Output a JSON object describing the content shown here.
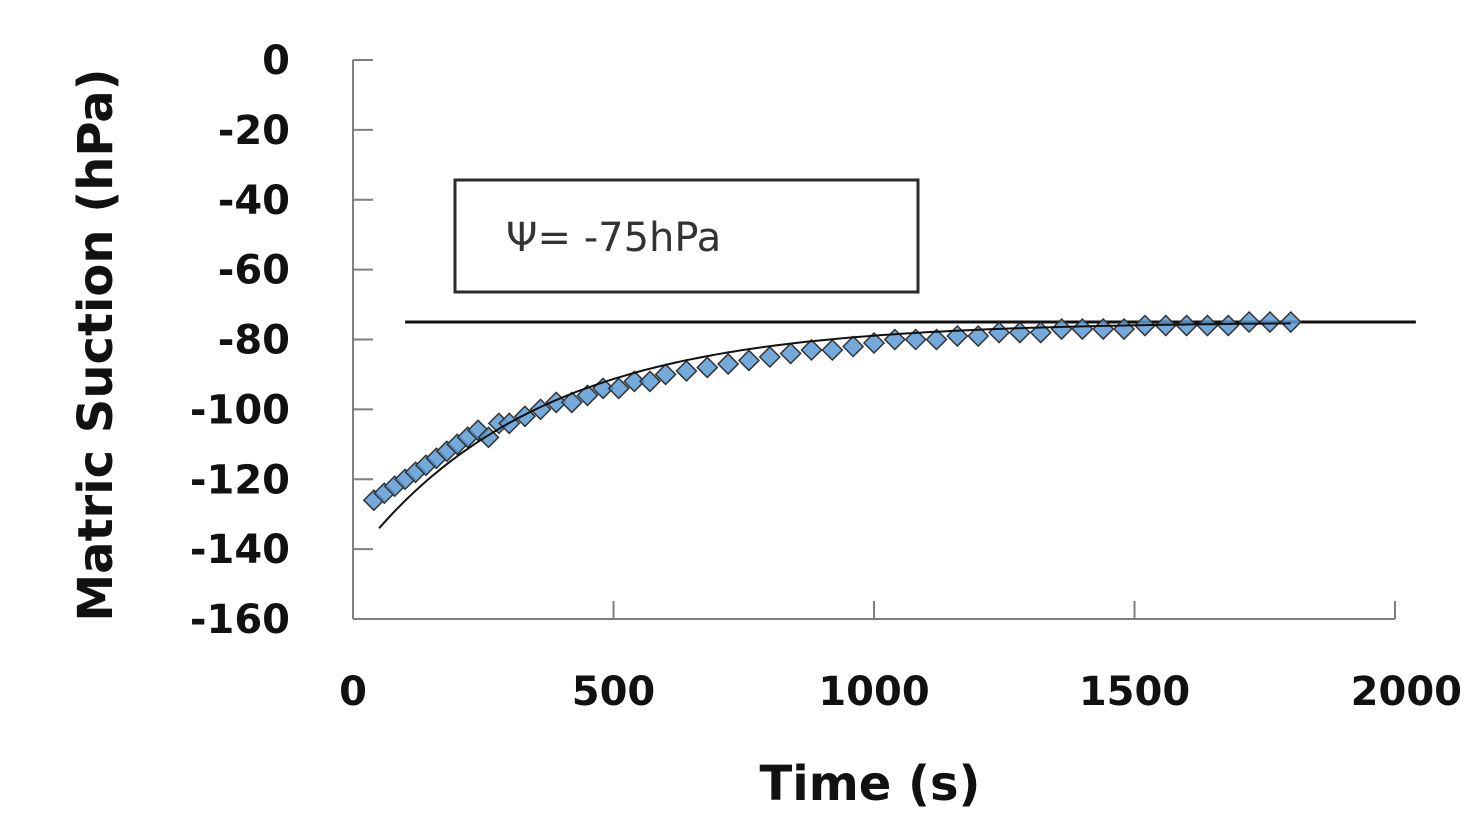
{
  "chart_data": {
    "type": "scatter",
    "xlabel": "Time  (s)",
    "ylabel": "Matric Suction (hPa)",
    "xlim": [
      0,
      2000
    ],
    "ylim": [
      -160,
      0
    ],
    "xticks": [
      "0",
      "500",
      "1000",
      "1500",
      "2000"
    ],
    "yticks": [
      "0",
      "-20",
      "-40",
      "-60",
      "-80",
      "-100",
      "-120",
      "-140",
      "-160"
    ],
    "xtick_values": [
      0,
      500,
      1000,
      1500,
      2000
    ],
    "ytick_values": [
      0,
      -20,
      -40,
      -60,
      -80,
      -100,
      -120,
      -140,
      -160
    ],
    "grid": false,
    "annotation": {
      "text": "Ψ= -75hPa",
      "value": -75
    },
    "reference_line": {
      "y": -75,
      "x_range": [
        100,
        2040
      ]
    },
    "fit_curve": {
      "asymptote": -75,
      "start": [
        50,
        -134
      ],
      "time_constant": 350,
      "x_range": [
        50,
        1800
      ]
    },
    "series": [
      {
        "marker": "diamond",
        "marker_color": "#5b9bd5",
        "x": [
          40,
          60,
          80,
          100,
          120,
          140,
          160,
          180,
          200,
          220,
          240,
          260,
          280,
          300,
          330,
          360,
          390,
          420,
          450,
          480,
          510,
          540,
          570,
          600,
          640,
          680,
          720,
          760,
          800,
          840,
          880,
          920,
          960,
          1000,
          1040,
          1080,
          1120,
          1160,
          1200,
          1240,
          1280,
          1320,
          1360,
          1400,
          1440,
          1480,
          1520,
          1560,
          1600,
          1640,
          1680,
          1720,
          1760,
          1800
        ],
        "y": [
          -126,
          -124,
          -122,
          -120,
          -118,
          -116,
          -114,
          -112,
          -110,
          -108,
          -106,
          -108,
          -104,
          -104,
          -102,
          -100,
          -98,
          -98,
          -96,
          -94,
          -94,
          -92,
          -92,
          -90,
          -89,
          -88,
          -87,
          -86,
          -85,
          -84,
          -83,
          -83,
          -82,
          -81,
          -80,
          -80,
          -80,
          -79,
          -79,
          -78,
          -78,
          -78,
          -77,
          -77,
          -77,
          -77,
          -76,
          -76,
          -76,
          -76,
          -76,
          -75,
          -75,
          -75
        ]
      }
    ]
  }
}
